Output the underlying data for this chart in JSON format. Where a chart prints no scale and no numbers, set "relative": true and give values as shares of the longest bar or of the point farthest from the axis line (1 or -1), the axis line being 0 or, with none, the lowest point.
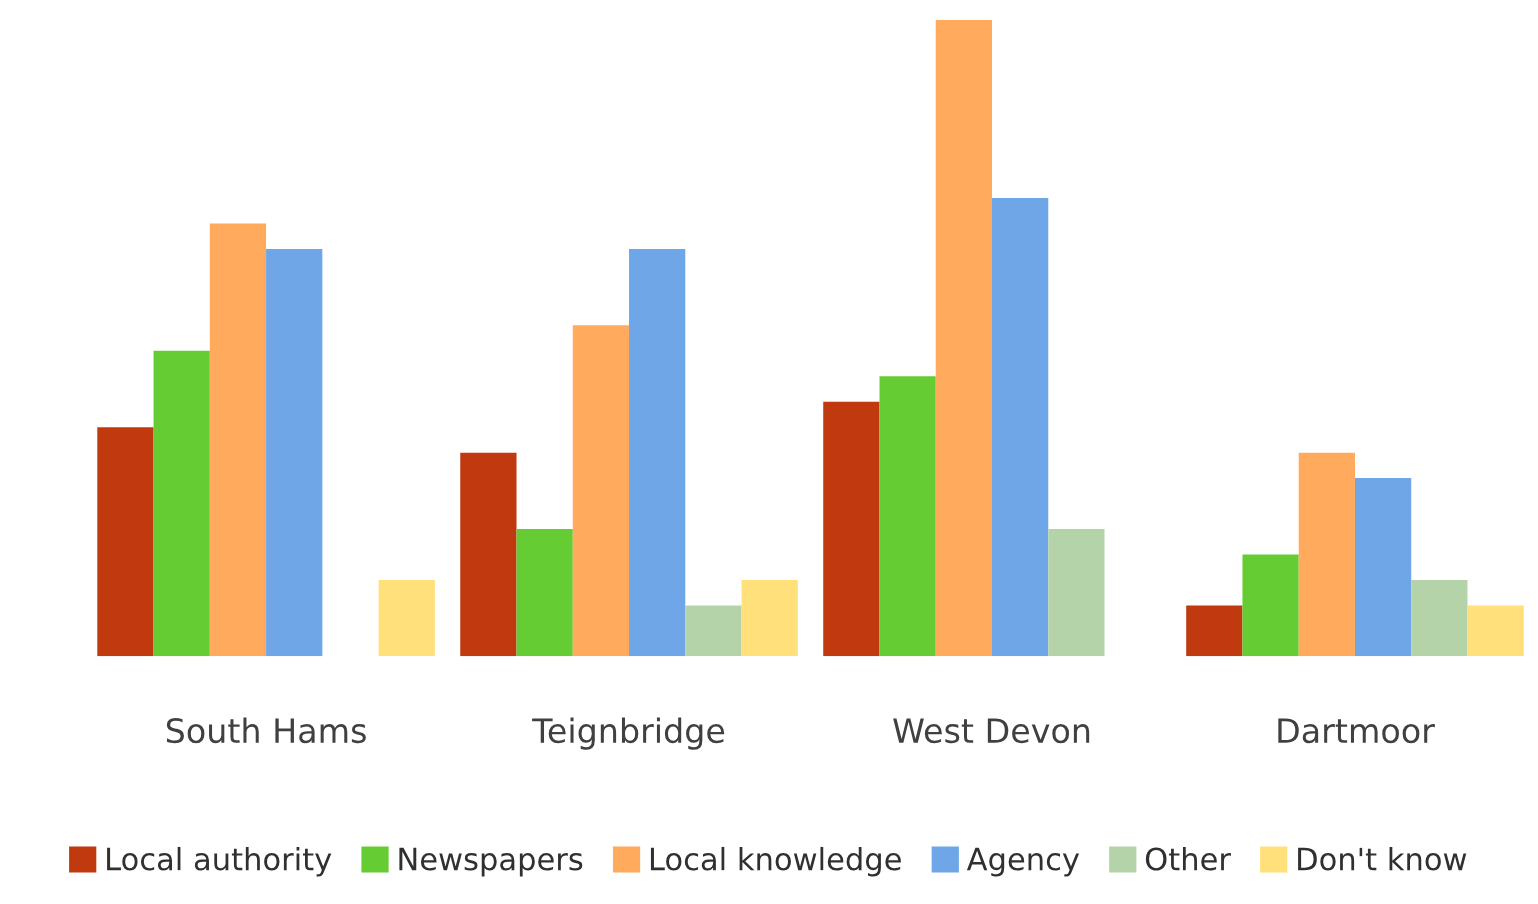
{
  "chart_data": {
    "type": "bar",
    "relative": true,
    "categories": [
      "South Hams",
      "Teignbridge",
      "West Devon",
      "Dartmoor"
    ],
    "series": [
      {
        "name": "Local authority",
        "color": "#c0390f",
        "values": [
          0.36,
          0.32,
          0.4,
          0.08
        ]
      },
      {
        "name": "Newspapers",
        "color": "#66cc33",
        "values": [
          0.48,
          0.2,
          0.44,
          0.16
        ]
      },
      {
        "name": "Local knowledge",
        "color": "#ffaa5c",
        "values": [
          0.68,
          0.52,
          1.0,
          0.32
        ]
      },
      {
        "name": "Agency",
        "color": "#6ea6e8",
        "values": [
          0.64,
          0.64,
          0.72,
          0.28
        ]
      },
      {
        "name": "Other",
        "color": "#b5d3a8",
        "values": [
          0,
          0.08,
          0.2,
          0.12
        ]
      },
      {
        "name": "Don't know",
        "color": "#ffe07a",
        "values": [
          0.12,
          0.12,
          0,
          0.08
        ]
      }
    ],
    "legend": "bottom",
    "grid": false
  }
}
